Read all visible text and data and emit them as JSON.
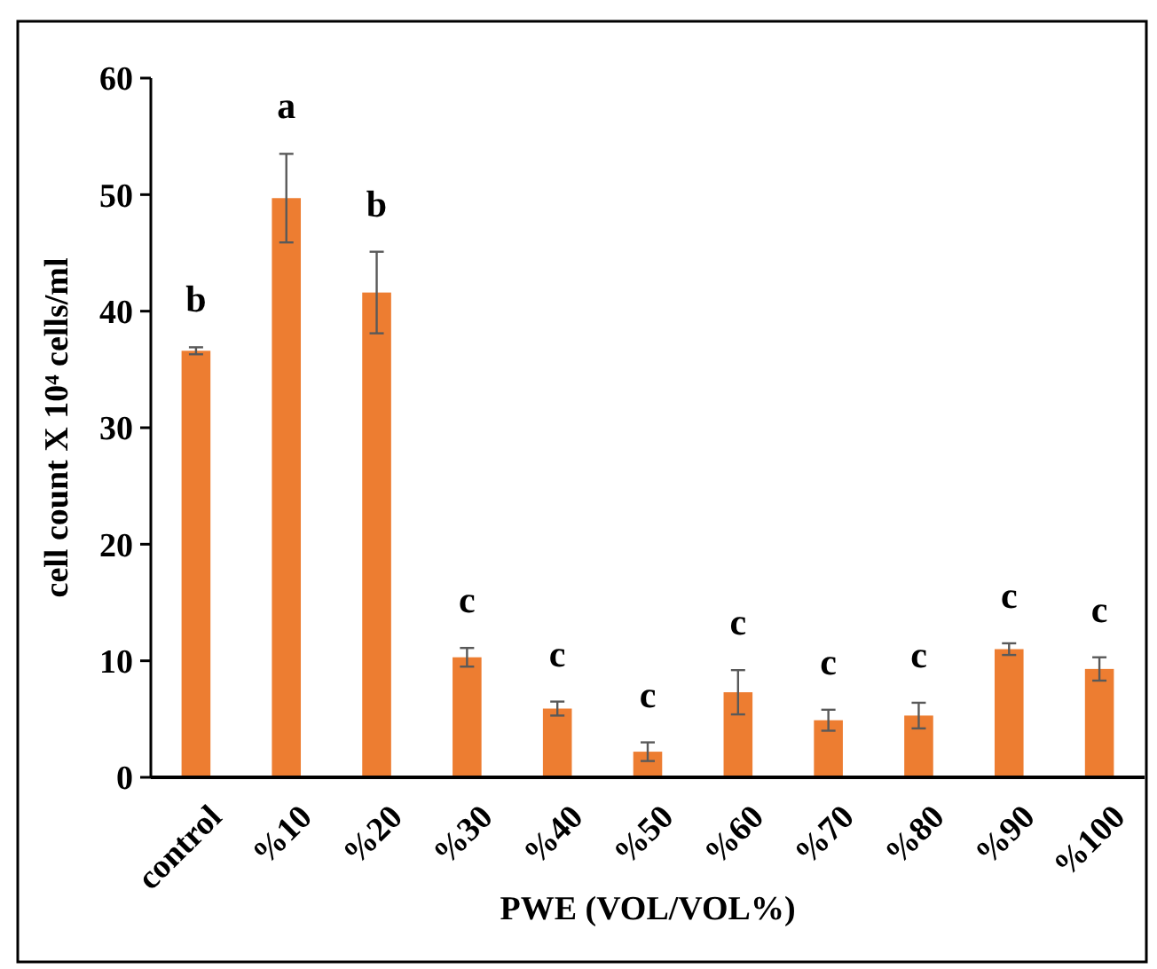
{
  "chart_data": {
    "type": "bar",
    "xlabel": "PWE (VOL/VOL%)",
    "ylabel": "cell count X 10⁴ cells/ml",
    "categories": [
      "control",
      "%10",
      "%20",
      "%30",
      "%40",
      "%50",
      "%60",
      "%70",
      "%80",
      "%90",
      "%100"
    ],
    "values": [
      36.6,
      49.7,
      41.6,
      10.3,
      5.9,
      2.2,
      7.3,
      4.9,
      5.3,
      11.0,
      9.3
    ],
    "errors": [
      0.3,
      3.8,
      3.5,
      0.8,
      0.6,
      0.8,
      1.9,
      0.9,
      1.1,
      0.5,
      1.0
    ],
    "color": "#ed7d31",
    "ylim": [
      0,
      60
    ],
    "yticks": [
      0,
      10,
      20,
      30,
      40,
      50,
      60
    ],
    "grid": false,
    "annotations": [
      {
        "text": "b",
        "x": "control",
        "y": 36.9
      },
      {
        "text": "a",
        "x": "%10",
        "y": 53.5
      },
      {
        "text": "b",
        "x": "%20",
        "y": 45.1
      },
      {
        "text": "c",
        "x": "%30",
        "y": 11.1
      },
      {
        "text": "c",
        "x": "%40",
        "y": 6.5
      },
      {
        "text": "c",
        "x": "%50",
        "y": 3.0
      },
      {
        "text": "c",
        "x": "%60",
        "y": 9.2
      },
      {
        "text": "c",
        "x": "%70",
        "y": 5.8
      },
      {
        "text": "c",
        "x": "%80",
        "y": 6.4
      },
      {
        "text": "c",
        "x": "%90",
        "y": 11.5
      },
      {
        "text": "c",
        "x": "%100",
        "y": 10.3
      }
    ]
  }
}
